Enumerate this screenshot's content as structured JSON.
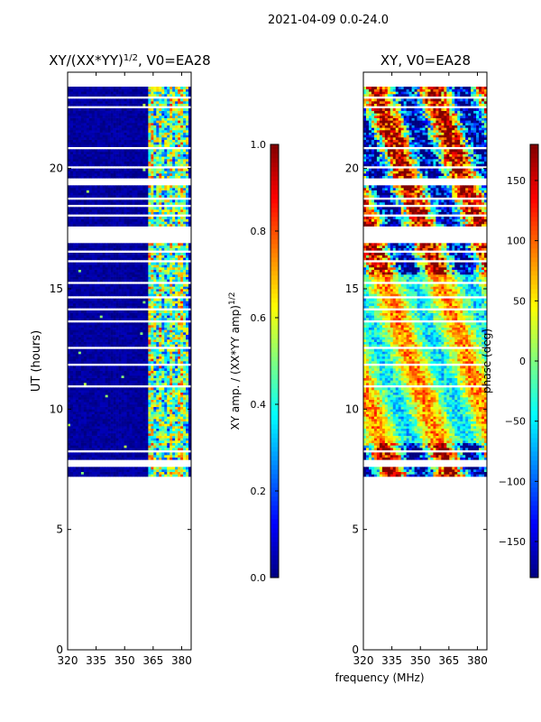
{
  "figure": {
    "suptitle": "2021-04-09 0.0-24.0"
  },
  "chart_data": [
    {
      "type": "heatmap",
      "title": "XY/(XX*YY)",
      "title_sup": "1/2",
      "title_suffix": ", V0=EA28",
      "xlabel": "",
      "ylabel": "UT (hours)",
      "xlim": [
        320,
        385
      ],
      "ylim": [
        0,
        24
      ],
      "xticks": [
        "320",
        "335",
        "350",
        "365",
        "380"
      ],
      "yticks": [
        "0",
        "5",
        "10",
        "15",
        "20"
      ],
      "data_ut_range": [
        7.2,
        23.4
      ],
      "bright_freq_range": [
        362,
        383
      ],
      "colorbar": {
        "label": "XY amp. / (XX*YY amp)",
        "label_sup": "1/2",
        "range": [
          0.0,
          1.0
        ],
        "ticks": [
          "0.0",
          "0.2",
          "0.4",
          "0.6",
          "0.8",
          "1.0"
        ],
        "colormap": "jet"
      }
    },
    {
      "type": "heatmap",
      "title": "XY, V0=EA28",
      "xlabel": "frequency (MHz)",
      "ylabel": "",
      "xlim": [
        320,
        385
      ],
      "ylim": [
        0,
        24
      ],
      "xticks": [
        "320",
        "335",
        "350",
        "365",
        "380"
      ],
      "yticks": [
        "0",
        "5",
        "10",
        "15",
        "20"
      ],
      "data_ut_range": [
        7.2,
        23.4
      ],
      "colorbar": {
        "label": "phase (deg)",
        "range": [
          -180,
          180
        ],
        "ticks": [
          "−150",
          "−100",
          "−50",
          "0",
          "50",
          "100",
          "150"
        ],
        "colormap": "jet"
      }
    }
  ],
  "colors": {
    "jet": [
      "#00007f",
      "#0000ff",
      "#007fff",
      "#00ffff",
      "#7fff7f",
      "#ffff00",
      "#ff7f00",
      "#ff0000",
      "#7f0000"
    ]
  }
}
